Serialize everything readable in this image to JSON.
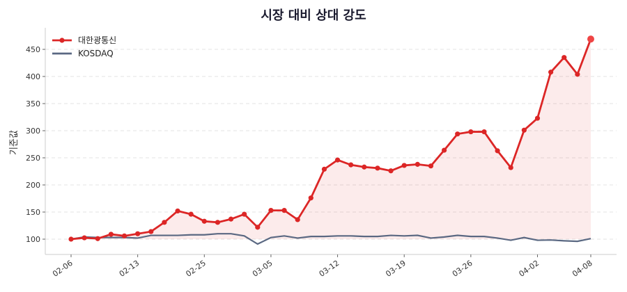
{
  "chart_data": {
    "type": "line",
    "title": "시장 대비 상대 강도",
    "ylabel": "기준값",
    "xlabel": "",
    "ylim": [
      72,
      490
    ],
    "yticks": [
      100,
      150,
      200,
      250,
      300,
      350,
      400,
      450
    ],
    "xticks": [
      {
        "index": 0,
        "label": "02-06"
      },
      {
        "index": 5,
        "label": "02-13"
      },
      {
        "index": 10,
        "label": "02-25"
      },
      {
        "index": 15,
        "label": "03-05"
      },
      {
        "index": 20,
        "label": "03-12"
      },
      {
        "index": 25,
        "label": "03-19"
      },
      {
        "index": 30,
        "label": "03-26"
      },
      {
        "index": 35,
        "label": "04-02"
      },
      {
        "index": 39,
        "label": "04-08"
      }
    ],
    "grid": true,
    "legend": "top-left",
    "series": [
      {
        "name": "대한광통신",
        "color": "#dc2626",
        "markers": true,
        "fill": true,
        "values": [
          100,
          102.5,
          101,
          109,
          106,
          110,
          114,
          131,
          152,
          146,
          133,
          131,
          137,
          146,
          122,
          153,
          153,
          136,
          176,
          229,
          246,
          237,
          233,
          231,
          226,
          236,
          238,
          235,
          264,
          294,
          298,
          298,
          263,
          232,
          301,
          323,
          408,
          435,
          404,
          469
        ]
      },
      {
        "name": "KOSDAQ",
        "color": "#5a6882",
        "markers": false,
        "fill": false,
        "values": [
          100,
          104,
          103,
          103,
          103,
          102,
          107,
          107,
          107,
          108,
          108,
          110,
          110,
          106,
          91,
          103,
          106,
          102,
          105,
          105,
          106,
          106,
          105,
          105,
          107,
          106,
          107,
          102,
          104,
          107,
          105,
          105,
          102,
          98,
          103,
          98,
          98.5,
          97,
          96,
          101
        ]
      }
    ]
  }
}
